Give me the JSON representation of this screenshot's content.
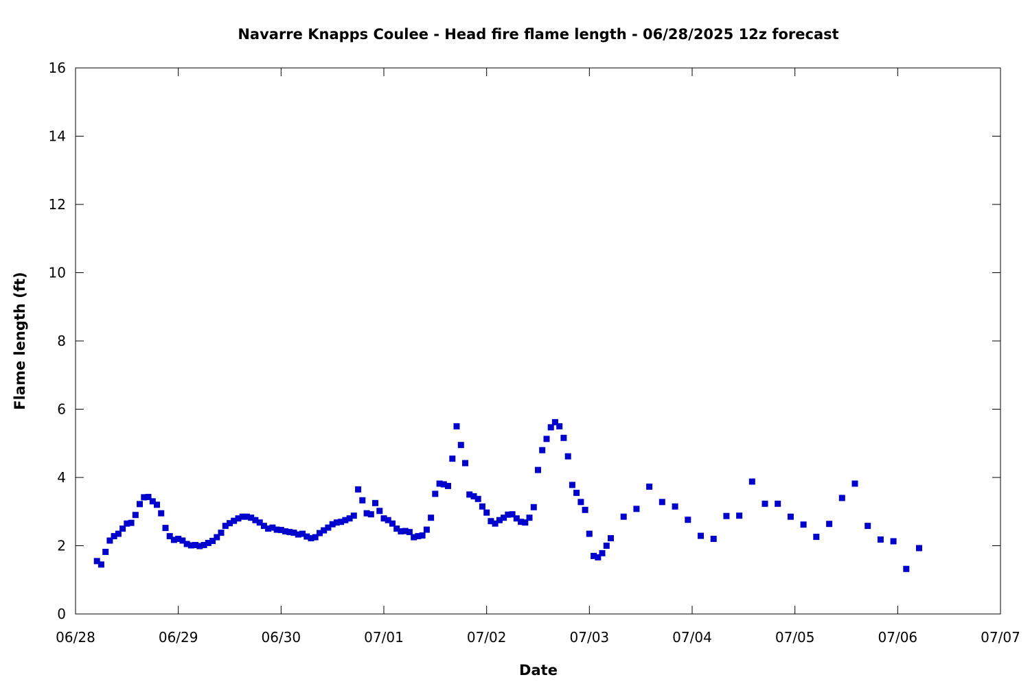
{
  "chart_data": {
    "type": "scatter",
    "title": "Navarre Knapps Coulee - Head fire flame length - 06/28/2025 12z forecast",
    "xlabel": "Date",
    "ylabel": "Flame length (ft)",
    "x_is_date": true,
    "xlim": [
      "2025-06-28",
      "2025-07-07"
    ],
    "ylim": [
      0,
      16
    ],
    "x_ticks": [
      "06/28",
      "06/29",
      "06/30",
      "07/01",
      "07/02",
      "07/03",
      "07/04",
      "07/05",
      "07/06",
      "07/07"
    ],
    "y_ticks": [
      "0",
      "2",
      "4",
      "6",
      "8",
      "10",
      "12",
      "14",
      "16"
    ],
    "grid": false,
    "legend": "none",
    "marker_color": "#0000cc",
    "series": [
      {
        "x": [
          "2025-06-28T05:00",
          "2025-06-28T06:00",
          "2025-06-28T07:00",
          "2025-06-28T08:00",
          "2025-06-28T09:00",
          "2025-06-28T10:00",
          "2025-06-28T11:00",
          "2025-06-28T12:00",
          "2025-06-28T13:00",
          "2025-06-28T14:00",
          "2025-06-28T15:00",
          "2025-06-28T16:00",
          "2025-06-28T17:00",
          "2025-06-28T18:00",
          "2025-06-28T19:00",
          "2025-06-28T20:00",
          "2025-06-28T21:00",
          "2025-06-28T22:00",
          "2025-06-28T23:00",
          "2025-06-29T00:00",
          "2025-06-29T01:00",
          "2025-06-29T02:00",
          "2025-06-29T03:00",
          "2025-06-29T04:00",
          "2025-06-29T05:00",
          "2025-06-29T06:00",
          "2025-06-29T07:00",
          "2025-06-29T08:00",
          "2025-06-29T09:00",
          "2025-06-29T10:00",
          "2025-06-29T11:00",
          "2025-06-29T12:00",
          "2025-06-29T13:00",
          "2025-06-29T14:00",
          "2025-06-29T15:00",
          "2025-06-29T16:00",
          "2025-06-29T17:00",
          "2025-06-29T18:00",
          "2025-06-29T19:00",
          "2025-06-29T20:00",
          "2025-06-29T21:00",
          "2025-06-29T22:00",
          "2025-06-29T23:00",
          "2025-06-30T00:00",
          "2025-06-30T01:00",
          "2025-06-30T02:00",
          "2025-06-30T03:00",
          "2025-06-30T04:00",
          "2025-06-30T05:00",
          "2025-06-30T06:00",
          "2025-06-30T07:00",
          "2025-06-30T08:00",
          "2025-06-30T09:00",
          "2025-06-30T10:00",
          "2025-06-30T11:00",
          "2025-06-30T12:00",
          "2025-06-30T13:00",
          "2025-06-30T14:00",
          "2025-06-30T15:00",
          "2025-06-30T16:00",
          "2025-06-30T17:00",
          "2025-06-30T18:00",
          "2025-06-30T19:00",
          "2025-06-30T20:00",
          "2025-06-30T21:00",
          "2025-06-30T22:00",
          "2025-06-30T23:00",
          "2025-07-01T00:00",
          "2025-07-01T01:00",
          "2025-07-01T02:00",
          "2025-07-01T03:00",
          "2025-07-01T04:00",
          "2025-07-01T05:00",
          "2025-07-01T06:00",
          "2025-07-01T07:00",
          "2025-07-01T08:00",
          "2025-07-01T09:00",
          "2025-07-01T10:00",
          "2025-07-01T11:00",
          "2025-07-01T12:00",
          "2025-07-01T13:00",
          "2025-07-01T14:00",
          "2025-07-01T15:00",
          "2025-07-01T16:00",
          "2025-07-01T17:00",
          "2025-07-01T18:00",
          "2025-07-01T19:00",
          "2025-07-01T20:00",
          "2025-07-01T21:00",
          "2025-07-01T22:00",
          "2025-07-01T23:00",
          "2025-07-02T00:00",
          "2025-07-02T01:00",
          "2025-07-02T02:00",
          "2025-07-02T03:00",
          "2025-07-02T04:00",
          "2025-07-02T05:00",
          "2025-07-02T06:00",
          "2025-07-02T07:00",
          "2025-07-02T08:00",
          "2025-07-02T09:00",
          "2025-07-02T10:00",
          "2025-07-02T11:00",
          "2025-07-02T12:00",
          "2025-07-02T13:00",
          "2025-07-02T14:00",
          "2025-07-02T15:00",
          "2025-07-02T16:00",
          "2025-07-02T17:00",
          "2025-07-02T18:00",
          "2025-07-02T19:00",
          "2025-07-02T20:00",
          "2025-07-02T21:00",
          "2025-07-02T22:00",
          "2025-07-02T23:00",
          "2025-07-03T00:00",
          "2025-07-03T01:00",
          "2025-07-03T02:00",
          "2025-07-03T03:00",
          "2025-07-03T04:00",
          "2025-07-03T05:00",
          "2025-07-03T08:00",
          "2025-07-03T11:00",
          "2025-07-03T14:00",
          "2025-07-03T17:00",
          "2025-07-03T20:00",
          "2025-07-03T23:00",
          "2025-07-04T02:00",
          "2025-07-04T05:00",
          "2025-07-04T08:00",
          "2025-07-04T11:00",
          "2025-07-04T14:00",
          "2025-07-04T17:00",
          "2025-07-04T20:00",
          "2025-07-04T23:00",
          "2025-07-05T02:00",
          "2025-07-05T05:00",
          "2025-07-05T08:00",
          "2025-07-05T11:00",
          "2025-07-05T14:00",
          "2025-07-05T17:00",
          "2025-07-05T20:00",
          "2025-07-05T23:00",
          "2025-07-06T02:00",
          "2025-07-06T05:00"
        ],
        "y": [
          1.55,
          1.45,
          1.82,
          2.15,
          2.28,
          2.35,
          2.5,
          2.65,
          2.67,
          2.9,
          3.22,
          3.42,
          3.43,
          3.3,
          3.2,
          2.95,
          2.52,
          2.28,
          2.17,
          2.2,
          2.15,
          2.05,
          2.01,
          2.02,
          1.99,
          2.02,
          2.08,
          2.14,
          2.25,
          2.38,
          2.58,
          2.66,
          2.73,
          2.8,
          2.85,
          2.85,
          2.82,
          2.75,
          2.68,
          2.58,
          2.5,
          2.53,
          2.47,
          2.46,
          2.42,
          2.4,
          2.38,
          2.33,
          2.35,
          2.27,
          2.22,
          2.25,
          2.37,
          2.45,
          2.53,
          2.63,
          2.68,
          2.7,
          2.75,
          2.8,
          2.88,
          3.65,
          3.33,
          2.95,
          2.92,
          3.25,
          3.02,
          2.8,
          2.75,
          2.65,
          2.5,
          2.42,
          2.43,
          2.4,
          2.25,
          2.28,
          2.3,
          2.47,
          2.82,
          3.52,
          3.82,
          3.8,
          3.75,
          4.55,
          5.5,
          4.95,
          4.42,
          3.5,
          3.45,
          3.37,
          3.15,
          2.97,
          2.72,
          2.65,
          2.75,
          2.82,
          2.91,
          2.92,
          2.8,
          2.7,
          2.68,
          2.82,
          3.13,
          4.22,
          4.8,
          5.13,
          5.47,
          5.62,
          5.5,
          5.16,
          4.62,
          3.78,
          3.55,
          3.28,
          3.05,
          2.35,
          1.7,
          1.66,
          1.78,
          2.0,
          2.22,
          2.85,
          3.08,
          3.73,
          3.28,
          3.15,
          2.76,
          2.29,
          2.2,
          2.87,
          2.88,
          3.88,
          3.23,
          3.23,
          2.85,
          2.62,
          2.26,
          2.64,
          3.4,
          3.82,
          2.58,
          2.18,
          2.13,
          1.32,
          1.93
        ]
      }
    ]
  }
}
